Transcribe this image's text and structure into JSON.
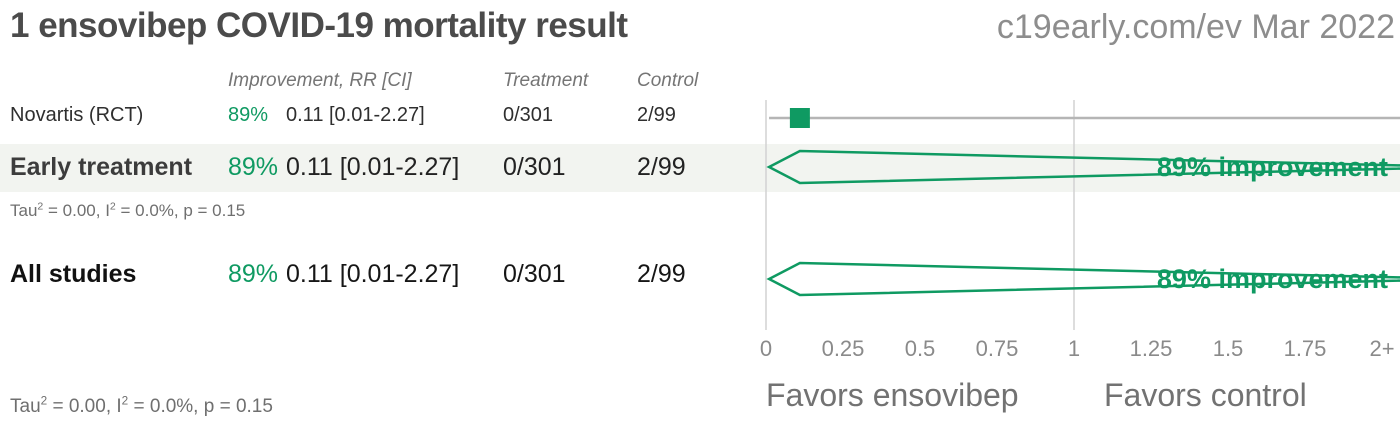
{
  "header": {
    "title": "1 ensovibep COVID-19 mortality result",
    "source": "c19early.com/ev Mar 2022"
  },
  "table": {
    "columns": {
      "improvement": "Improvement, RR [CI]",
      "treatment": "Treatment",
      "control": "Control"
    },
    "study_row": {
      "label": "Novartis (RCT)",
      "improvement": "89%",
      "rr_ci": "0.11 [0.01-2.27]",
      "treatment": "0/301",
      "control": "2/99"
    },
    "early_row": {
      "label": "Early treatment",
      "improvement": "89%",
      "rr_ci": "0.11 [0.01-2.27]",
      "treatment": "0/301",
      "control": "2/99"
    },
    "early_heterogeneity": {
      "segments": [
        {
          "t": "Tau"
        },
        {
          "t": "2",
          "sup": true
        },
        {
          "t": " = 0.00, I"
        },
        {
          "t": "2",
          "sup": true
        },
        {
          "t": " = 0.0%, p = 0.15"
        }
      ]
    },
    "all_row": {
      "label": "All studies",
      "improvement": "89%",
      "rr_ci": "0.11 [0.01-2.27]",
      "treatment": "0/301",
      "control": "2/99"
    },
    "all_heterogeneity": {
      "segments": [
        {
          "t": "Tau"
        },
        {
          "t": "2",
          "sup": true
        },
        {
          "t": " = 0.00, I"
        },
        {
          "t": "2",
          "sup": true
        },
        {
          "t": " = 0.0%, p = 0.15"
        }
      ]
    }
  },
  "plot": {
    "favors_left": "Favors ensovibep",
    "favors_right": "Favors control"
  },
  "chart_data": {
    "type": "forest",
    "title": "1 ensovibep COVID-19 mortality result",
    "x_axis": {
      "label_ticks": [
        {
          "value": 0,
          "label": "0"
        },
        {
          "value": 0.25,
          "label": "0.25"
        },
        {
          "value": 0.5,
          "label": "0.5"
        },
        {
          "value": 0.75,
          "label": "0.75"
        },
        {
          "value": 1,
          "label": "1"
        },
        {
          "value": 1.25,
          "label": "1.25"
        },
        {
          "value": 1.5,
          "label": "1.5"
        },
        {
          "value": 1.75,
          "label": "1.75"
        },
        {
          "value": 2,
          "label": "2+"
        }
      ],
      "gridlines": [
        0,
        1
      ],
      "range": [
        0,
        2.06
      ]
    },
    "rows": [
      {
        "kind": "study",
        "name": "Novartis (RCT)",
        "rr": 0.11,
        "ci": [
          0.01,
          2.27
        ],
        "improvement_pct": 89,
        "treatment_events": "0/301",
        "control_events": "2/99",
        "marker": "square"
      },
      {
        "kind": "summary",
        "name": "Early treatment",
        "rr": 0.11,
        "ci": [
          0.01,
          2.27
        ],
        "improvement_pct": 89,
        "treatment_events": "0/301",
        "control_events": "2/99",
        "label": "89% improvement"
      },
      {
        "kind": "summary",
        "name": "All studies",
        "rr": 0.11,
        "ci": [
          0.01,
          2.27
        ],
        "improvement_pct": 89,
        "treatment_events": "0/301",
        "control_events": "2/99",
        "label": "89% improvement"
      }
    ],
    "heterogeneity_text": "Tau2 = 0.00, I2 = 0.0%, p = 0.15"
  },
  "colors": {
    "green": "#0f9a62",
    "ci_line": "#b5b5b5",
    "grid": "#d2d2d2",
    "band": "#f2f4f0",
    "title": "#4b4b4b",
    "source": "#8d8d8d",
    "muted": "#757575",
    "axis": "#8a8a8a",
    "favors": "#727272",
    "het": "#6f6f6f"
  }
}
